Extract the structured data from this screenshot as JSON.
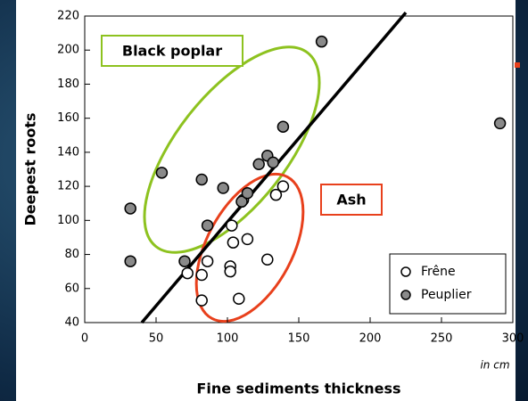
{
  "chart_data": {
    "type": "scatter",
    "x_label": "Fine sediments thickness",
    "y_label": "Deepest roots",
    "unit_note": "in cm",
    "xlim": [
      0,
      300
    ],
    "xticks": [
      0,
      50,
      100,
      150,
      200,
      250,
      300
    ],
    "ylim": [
      40,
      220
    ],
    "yticks": [
      40,
      60,
      80,
      100,
      120,
      140,
      160,
      180,
      200,
      220
    ],
    "series": [
      {
        "name": "Frêne",
        "color": "#ffffff",
        "x": [
          72,
          82,
          86,
          82,
          103,
          104,
          114,
          102,
          102,
          108,
          128,
          134,
          139,
          111
        ],
        "values": [
          69,
          68,
          76,
          53,
          97,
          87,
          89,
          73,
          70,
          54,
          77,
          115,
          120,
          112
        ]
      },
      {
        "name": "Peuplier",
        "color": "#8a8a8a",
        "x": [
          32,
          32,
          70,
          54,
          82,
          86,
          97,
          110,
          114,
          122,
          128,
          132,
          139,
          166,
          291
        ],
        "values": [
          107,
          76,
          76,
          128,
          124,
          97,
          119,
          111,
          116,
          133,
          138,
          134,
          155,
          205,
          157
        ]
      }
    ],
    "trend_line": {
      "x": [
        40,
        225
      ],
      "values": [
        40,
        222
      ]
    },
    "annotations": [
      {
        "text": "Black poplar",
        "color": "#8dc21f"
      },
      {
        "text": "Ash",
        "color": "#e8401c"
      }
    ]
  }
}
